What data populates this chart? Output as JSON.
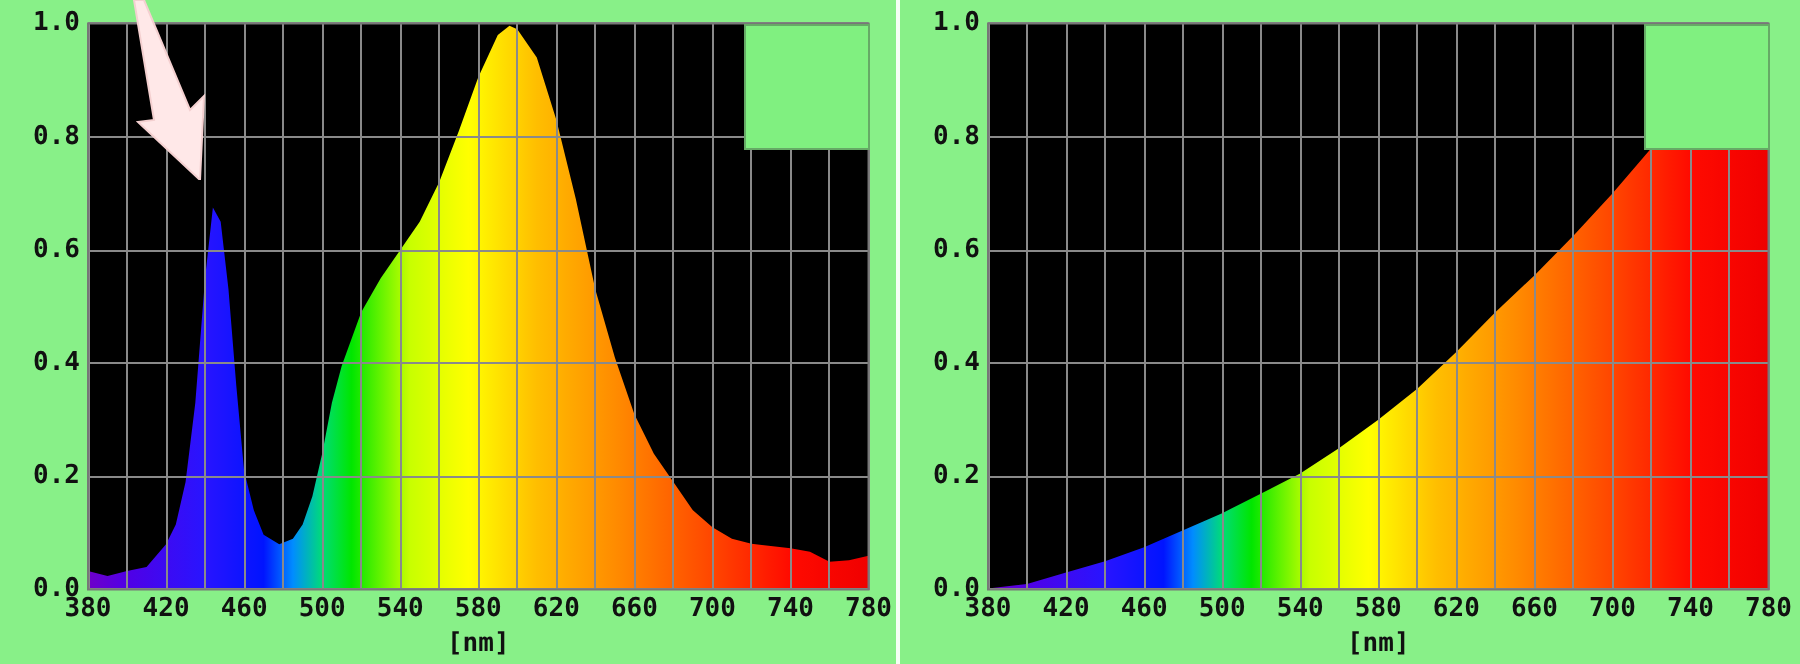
{
  "chart_data": [
    {
      "type": "area",
      "xlabel": "[nm]",
      "marker": "none",
      "grid": true,
      "legend": false,
      "x": [
        380,
        390,
        400,
        410,
        420,
        425,
        430,
        435,
        440,
        444,
        448,
        452,
        456,
        460,
        465,
        470,
        478,
        485,
        490,
        495,
        500,
        505,
        510,
        520,
        530,
        540,
        550,
        560,
        570,
        580,
        590,
        596,
        600,
        610,
        620,
        630,
        640,
        650,
        660,
        670,
        680,
        690,
        700,
        710,
        720,
        740,
        750,
        760,
        770,
        780
      ],
      "values": [
        0.033,
        0.024,
        0.033,
        0.04,
        0.08,
        0.115,
        0.19,
        0.33,
        0.55,
        0.675,
        0.65,
        0.53,
        0.36,
        0.21,
        0.14,
        0.097,
        0.08,
        0.09,
        0.115,
        0.165,
        0.24,
        0.33,
        0.395,
        0.49,
        0.55,
        0.6,
        0.65,
        0.72,
        0.81,
        0.905,
        0.98,
        0.996,
        0.99,
        0.94,
        0.83,
        0.69,
        0.53,
        0.41,
        0.31,
        0.24,
        0.19,
        0.14,
        0.11,
        0.09,
        0.081,
        0.073,
        0.067,
        0.049,
        0.052,
        0.06
      ],
      "xlim": [
        380,
        780
      ],
      "xticks": [
        380,
        {
          "value": 400,
          "label": null
        },
        420,
        {
          "value": 440,
          "label": null
        },
        460,
        {
          "value": 480,
          "label": null
        },
        500,
        {
          "value": 520,
          "label": null
        },
        540,
        {
          "value": 560,
          "label": null
        },
        580,
        {
          "value": 600,
          "label": null
        },
        620,
        {
          "value": 640,
          "label": null
        },
        660,
        {
          "value": 680,
          "label": null
        },
        700,
        {
          "value": 720,
          "label": null
        },
        740,
        {
          "value": 760,
          "label": null
        },
        780
      ],
      "ylim": [
        0,
        1
      ],
      "yticks": [
        {
          "value": 0,
          "label": "0.0"
        },
        {
          "value": 0.2,
          "label": "0.2"
        },
        {
          "value": 0.4,
          "label": "0.4"
        },
        {
          "value": 0.6,
          "label": "0.6"
        },
        {
          "value": 0.8,
          "label": "0.8"
        },
        {
          "value": 1,
          "label": "1.0"
        }
      ]
    },
    {
      "type": "area",
      "xlabel": "[nm]",
      "marker": "none",
      "grid": true,
      "legend": false,
      "x": [
        380,
        400,
        420,
        440,
        460,
        480,
        500,
        520,
        540,
        560,
        580,
        600,
        620,
        640,
        660,
        680,
        700,
        720,
        740,
        760,
        780
      ],
      "values": [
        0.002,
        0.01,
        0.03,
        0.05,
        0.075,
        0.105,
        0.135,
        0.17,
        0.205,
        0.25,
        0.3,
        0.355,
        0.42,
        0.49,
        0.555,
        0.625,
        0.7,
        0.78,
        0.78,
        0.78,
        0.78
      ],
      "xlim": [
        380,
        780
      ],
      "xticks": [
        380,
        {
          "value": 400,
          "label": null
        },
        420,
        {
          "value": 440,
          "label": null
        },
        460,
        {
          "value": 480,
          "label": null
        },
        500,
        {
          "value": 520,
          "label": null
        },
        540,
        {
          "value": 560,
          "label": null
        },
        580,
        {
          "value": 600,
          "label": null
        },
        620,
        {
          "value": 640,
          "label": null
        },
        660,
        {
          "value": 680,
          "label": null
        },
        700,
        {
          "value": 720,
          "label": null
        },
        740,
        {
          "value": 760,
          "label": null
        },
        780
      ],
      "ylim": [
        0,
        1
      ],
      "yticks": [
        {
          "value": 0,
          "label": "0.0"
        },
        {
          "value": 0.2,
          "label": "0.2"
        },
        {
          "value": 0.4,
          "label": "0.4"
        },
        {
          "value": 0.6,
          "label": "0.6"
        },
        {
          "value": 0.8,
          "label": "0.8"
        },
        {
          "value": 1,
          "label": "1.0"
        }
      ]
    }
  ]
}
